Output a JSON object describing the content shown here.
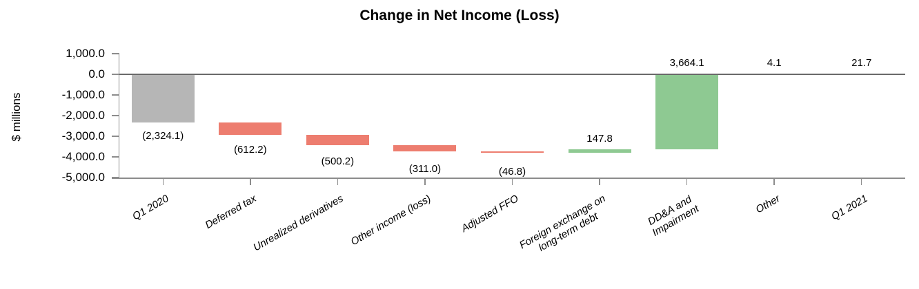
{
  "chart_data": {
    "type": "bar",
    "subtype": "waterfall",
    "title": "Change in Net Income (Loss)",
    "ylabel": "$ millions",
    "xlabel": "",
    "ylim": [
      -5000,
      1000
    ],
    "grid": false,
    "legend": false,
    "yticks": [
      {
        "value": 1000,
        "label": "1,000.0"
      },
      {
        "value": 0,
        "label": "0.0"
      },
      {
        "value": -1000,
        "label": "-1,000.0"
      },
      {
        "value": -2000,
        "label": "-2,000.0"
      },
      {
        "value": -3000,
        "label": "-3,000.0"
      },
      {
        "value": -4000,
        "label": "-4,000.0"
      },
      {
        "value": -5000,
        "label": "-5,000.0"
      }
    ],
    "categories": [
      "Q1 2020",
      "Deferred tax",
      "Unrealized derivatives",
      "Other income (loss)",
      "Adjusted FFO",
      "Foreign exchange on\nlong-term debt",
      "DD&A and\nImpairment",
      "Other",
      "Q1 2021"
    ],
    "points": [
      {
        "category": "Q1 2020",
        "value": -2324.1,
        "start": 0,
        "end": -2324.1,
        "label": "(2,324.1)",
        "role": "start-total"
      },
      {
        "category": "Deferred tax",
        "value": -612.2,
        "start": -2324.1,
        "end": -2936.3,
        "label": "(612.2)",
        "role": "decrease"
      },
      {
        "category": "Unrealized derivatives",
        "value": -500.2,
        "start": -2936.3,
        "end": -3436.5,
        "label": "(500.2)",
        "role": "decrease"
      },
      {
        "category": "Other income (loss)",
        "value": -311.0,
        "start": -3436.5,
        "end": -3747.5,
        "label": "(311.0)",
        "role": "decrease"
      },
      {
        "category": "Adjusted FFO",
        "value": -46.8,
        "start": -3747.5,
        "end": -3794.3,
        "label": "(46.8)",
        "role": "decrease"
      },
      {
        "category": "Foreign exchange on\nlong-term debt",
        "value": 147.8,
        "start": -3794.3,
        "end": -3646.5,
        "label": "147.8",
        "role": "increase"
      },
      {
        "category": "DD&A and\nImpairment",
        "value": 3664.1,
        "start": -3646.5,
        "end": 17.6,
        "label": "3,664.1",
        "role": "increase"
      },
      {
        "category": "Other",
        "value": 4.1,
        "start": 17.6,
        "end": 21.7,
        "label": "4.1",
        "role": "increase"
      },
      {
        "category": "Q1 2021",
        "value": 21.7,
        "start": 0,
        "end": 21.7,
        "label": "21.7",
        "role": "end-total"
      }
    ],
    "colors": {
      "decrease": "#ED7D6F",
      "increase": "#8EC992",
      "total": "#B6B6B6",
      "axis": "#8C8C8C",
      "zero_line": "#696969",
      "text": "#000000"
    }
  }
}
